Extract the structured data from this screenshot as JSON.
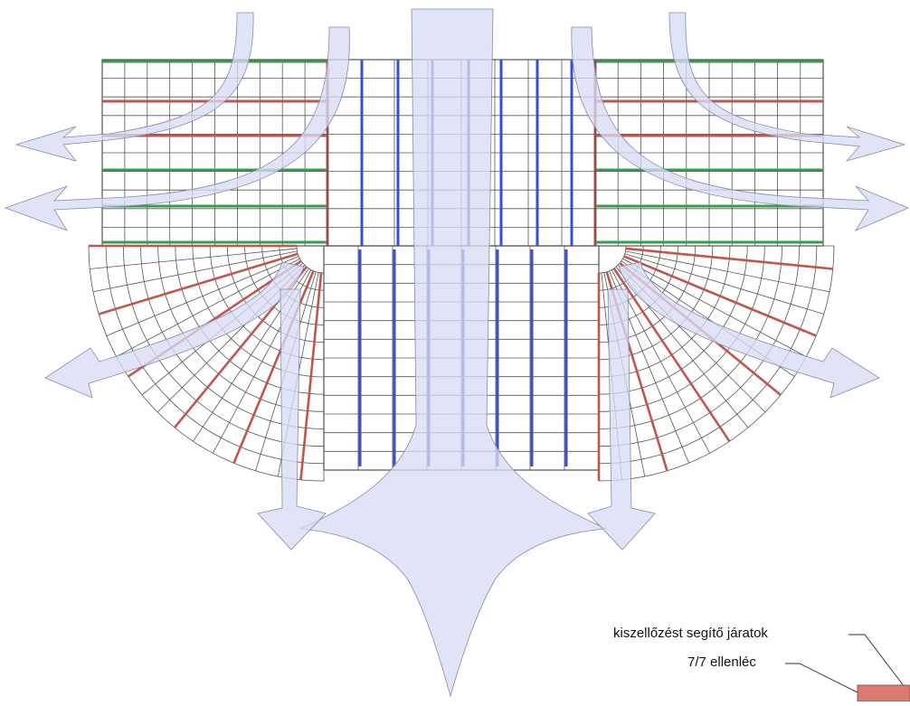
{
  "colors": {
    "airflow_fill": "#d9dbf3",
    "airflow_stroke": "#8a8aa8",
    "frame_line": "#555555",
    "batten_green": "#3c9a4c",
    "batten_red": "#c0564e",
    "counter_batten_blue": "#3a4fd0",
    "vent_channel_box": "#d67a72"
  },
  "legend": {
    "vent_channels_label": "kiszellőzést segítő járatok",
    "counter_batten_label": "7/7 ellenléc"
  }
}
